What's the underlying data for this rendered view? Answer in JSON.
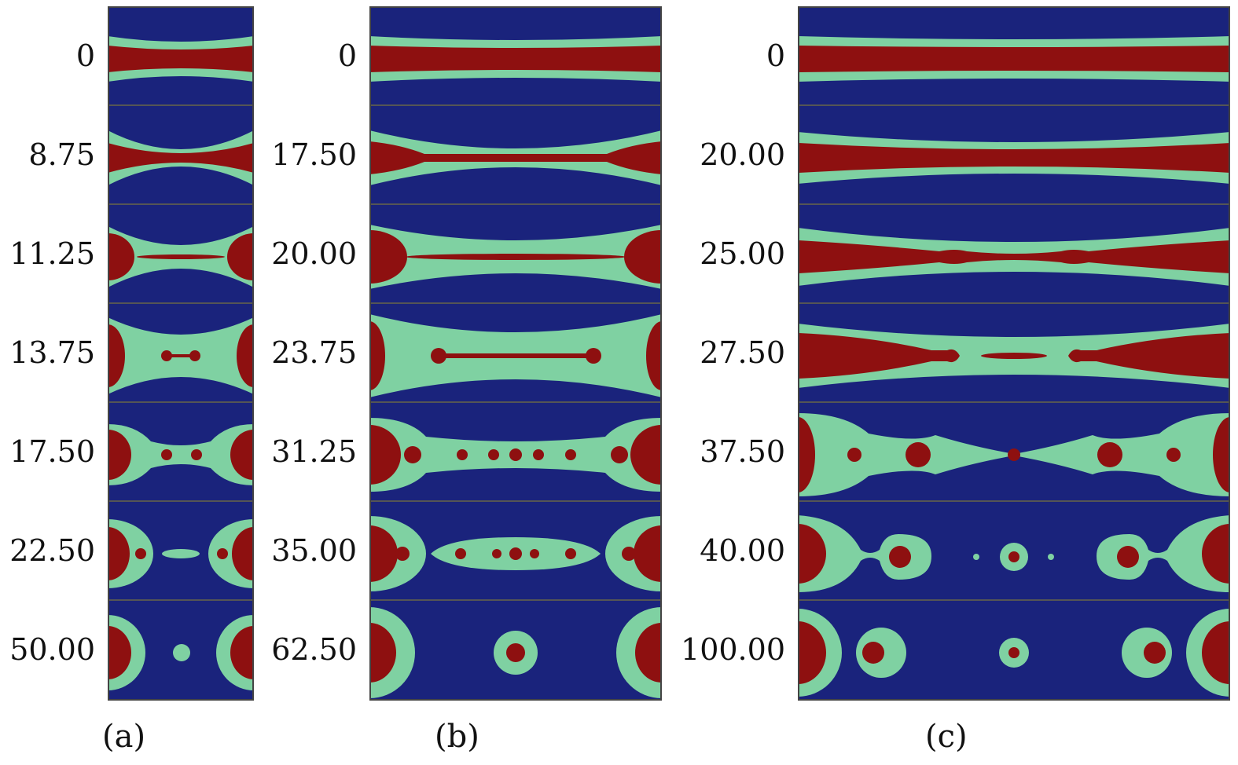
{
  "figure": {
    "colors": {
      "background": "#1a237c",
      "shell": "#7fd1a2",
      "core": "#8e1010",
      "separator": "#555555",
      "frame": "#444444"
    },
    "panels": [
      {
        "key": "a",
        "label": "(a)",
        "frames": [
          {
            "time": "0",
            "content": "thread with neck"
          },
          {
            "time": "8.75",
            "content": "thread thinning at center"
          },
          {
            "time": "11.25",
            "content": "end bulbs with thin central filament"
          },
          {
            "time": "13.75",
            "content": "central dumbbell between end caps"
          },
          {
            "time": "17.50",
            "content": "two satellite droplets"
          },
          {
            "time": "22.50",
            "content": "small droplets with central lens"
          },
          {
            "time": "50.00",
            "content": "end caps with one satellite droplet"
          }
        ]
      },
      {
        "key": "b",
        "label": "(b)",
        "frames": [
          {
            "time": "0",
            "content": "uniform thread"
          },
          {
            "time": "17.50",
            "content": "thread with end swellings"
          },
          {
            "time": "20.00",
            "content": "end bulbs with long thin filament"
          },
          {
            "time": "23.75",
            "content": "long dumbbell filament"
          },
          {
            "time": "31.25",
            "content": "chain of small droplets"
          },
          {
            "time": "35.00",
            "content": "droplets in central shell"
          },
          {
            "time": "62.50",
            "content": "single central compound droplet"
          }
        ]
      },
      {
        "key": "c",
        "label": "(c)",
        "frames": [
          {
            "time": "0",
            "content": "uniform thread"
          },
          {
            "time": "20.00",
            "content": "thread with slight necking"
          },
          {
            "time": "25.00",
            "content": "modulated thread"
          },
          {
            "time": "27.50",
            "content": "thread pinching into segments"
          },
          {
            "time": "37.50",
            "content": "beads-on-string"
          },
          {
            "time": "40.00",
            "content": "detached compound droplets"
          },
          {
            "time": "100.00",
            "content": "row of compound droplets"
          }
        ]
      }
    ]
  }
}
